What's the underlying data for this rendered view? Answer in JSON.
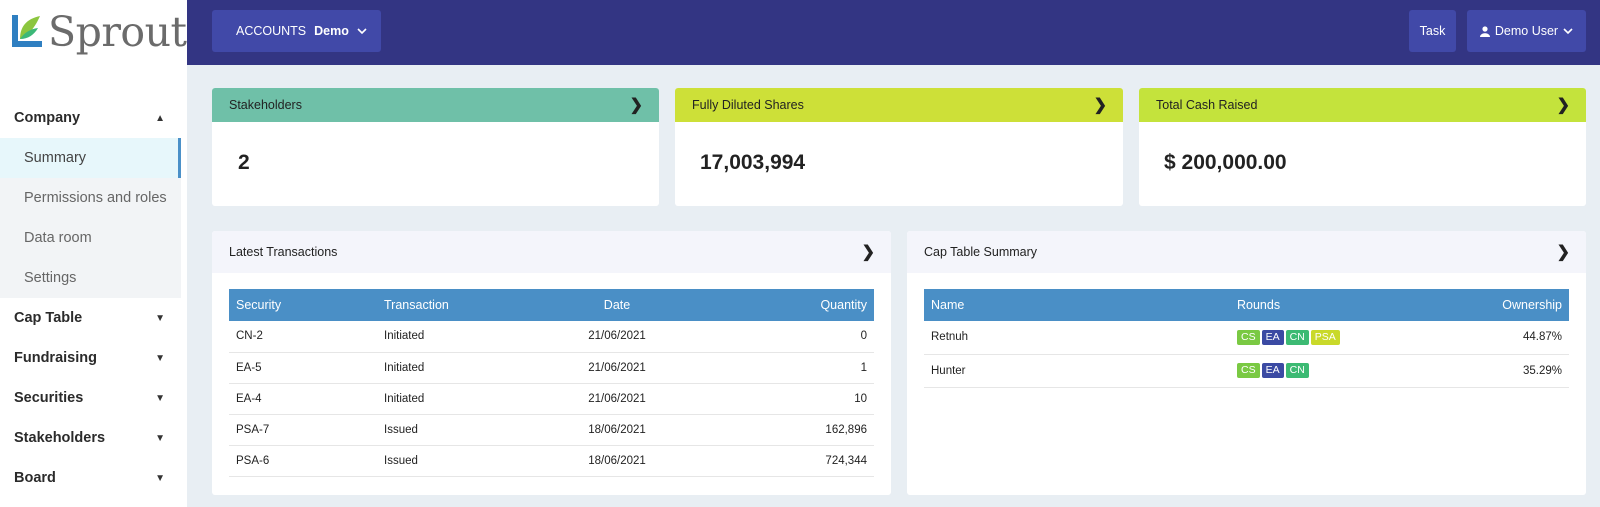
{
  "app": {
    "logo_text": "Sprout"
  },
  "header": {
    "accounts_label": "ACCOUNTS",
    "account_name": "Demo",
    "task_label": "Task",
    "user_label": "Demo User"
  },
  "sidebar": {
    "company": "Company",
    "company_items": [
      "Summary",
      "Permissions and roles",
      "Data room",
      "Settings"
    ],
    "groups": [
      "Cap Table",
      "Fundraising",
      "Securities",
      "Stakeholders",
      "Board"
    ]
  },
  "stats": [
    {
      "label": "Stakeholders",
      "value": "2",
      "color": "#6fc0a8"
    },
    {
      "label": "Fully Diluted Shares",
      "value": "17,003,994",
      "color": "#cde038"
    },
    {
      "label": "Total Cash Raised",
      "value": "$ 200,000.00",
      "color": "#c4e33c"
    }
  ],
  "transactions": {
    "title": "Latest Transactions",
    "columns": [
      "Security",
      "Transaction",
      "Date",
      "Quantity"
    ],
    "rows": [
      [
        "CN-2",
        "Initiated",
        "21/06/2021",
        "0"
      ],
      [
        "EA-5",
        "Initiated",
        "21/06/2021",
        "1"
      ],
      [
        "EA-4",
        "Initiated",
        "21/06/2021",
        "10"
      ],
      [
        "PSA-7",
        "Issued",
        "18/06/2021",
        "162,896"
      ],
      [
        "PSA-6",
        "Issued",
        "18/06/2021",
        "724,344"
      ]
    ]
  },
  "captable": {
    "title": "Cap Table Summary",
    "columns": [
      "Name",
      "Rounds",
      "Ownership"
    ],
    "rows": [
      {
        "name": "Retnuh",
        "rounds": [
          "CS",
          "EA",
          "CN",
          "PSA"
        ],
        "ownership": "44.87%"
      },
      {
        "name": "Hunter",
        "rounds": [
          "CS",
          "EA",
          "CN"
        ],
        "ownership": "35.29%"
      }
    ]
  },
  "colors": {
    "header_bg": "#333583",
    "button_bg": "#4149a8",
    "table_header": "#4a8fc6",
    "badge_CS": "#7ac943",
    "badge_EA": "#3b4aa3",
    "badge_CN": "#3cba73",
    "badge_PSA": "#c9d92a"
  }
}
